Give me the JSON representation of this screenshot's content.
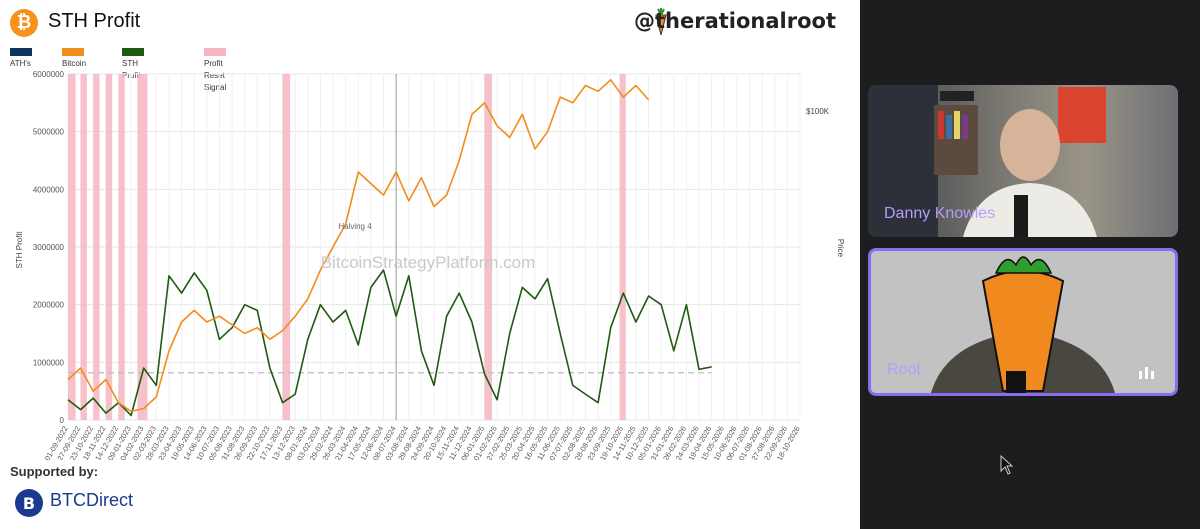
{
  "header": {
    "btc_symbol": "₿",
    "title": "STH Profit",
    "handle": "@therationalroot"
  },
  "legend": [
    {
      "label": "ATH's",
      "color": "#0f3460"
    },
    {
      "label": "Bitcoin",
      "color": "#f28c1c"
    },
    {
      "label": "STH Profit",
      "color": "#1e5a12"
    },
    {
      "label": "Profit Reset Signal",
      "color": "#f4b6c2"
    }
  ],
  "chart_data": {
    "type": "line",
    "ylabel": "STH Profit",
    "y2label": "Price",
    "y2_tick": "$100K",
    "watermark": "BitcoinStrategyPlatform.com",
    "annotation": "Halving 4",
    "ylim": [
      0,
      6000000
    ],
    "yticks": [
      "0",
      "1000000",
      "2000000",
      "3000000",
      "4000000",
      "5000000",
      "6000000"
    ],
    "x_ticks": [
      "01-09-2022",
      "27-09-2022",
      "23-10-2022",
      "18-11-2022",
      "14-12-2022",
      "09-01-2023",
      "04-02-2023",
      "02-03-2023",
      "28-03-2023",
      "23-04-2023",
      "19-05-2023",
      "14-06-2023",
      "10-07-2023",
      "05-08-2023",
      "31-08-2023",
      "26-09-2023",
      "22-10-2023",
      "17-11-2023",
      "13-12-2023",
      "08-01-2024",
      "03-02-2024",
      "29-02-2024",
      "26-03-2024",
      "21-04-2024",
      "17-05-2024",
      "12-06-2024",
      "08-07-2024",
      "03-08-2024",
      "29-08-2024",
      "24-09-2024",
      "20-10-2024",
      "15-11-2024",
      "11-12-2024",
      "06-01-2025",
      "01-02-2025",
      "27-02-2025",
      "25-03-2025",
      "20-04-2025",
      "16-05-2025",
      "11-06-2025",
      "07-07-2025",
      "02-08-2025",
      "28-08-2025",
      "23-09-2025",
      "19-10-2025",
      "14-11-2025",
      "10-12-2025",
      "05-01-2026",
      "31-01-2026",
      "26-02-2026",
      "24-03-2026",
      "19-04-2026",
      "15-05-2026",
      "10-06-2026",
      "06-07-2026",
      "01-08-2026",
      "27-08-2026",
      "22-09-2026",
      "18-10-2026"
    ],
    "series": [
      {
        "name": "STH Profit",
        "color": "#1e5a12",
        "points": [
          [
            0,
            350000
          ],
          [
            1,
            180000
          ],
          [
            2,
            380000
          ],
          [
            3,
            120000
          ],
          [
            4,
            300000
          ],
          [
            5,
            80000
          ],
          [
            6,
            900000
          ],
          [
            7,
            600000
          ],
          [
            8,
            2500000
          ],
          [
            9,
            2200000
          ],
          [
            10,
            2550000
          ],
          [
            11,
            2250000
          ],
          [
            12,
            1400000
          ],
          [
            13,
            1600000
          ],
          [
            14,
            2000000
          ],
          [
            15,
            1900000
          ],
          [
            16,
            900000
          ],
          [
            17,
            300000
          ],
          [
            18,
            450000
          ],
          [
            19,
            1400000
          ],
          [
            20,
            2000000
          ],
          [
            21,
            1700000
          ],
          [
            22,
            1900000
          ],
          [
            23,
            1300000
          ],
          [
            24,
            2300000
          ],
          [
            25,
            2600000
          ],
          [
            26,
            1800000
          ],
          [
            27,
            2500000
          ],
          [
            28,
            1200000
          ],
          [
            29,
            600000
          ],
          [
            30,
            1800000
          ],
          [
            31,
            2200000
          ],
          [
            32,
            1700000
          ],
          [
            33,
            800000
          ],
          [
            34,
            350000
          ],
          [
            35,
            1500000
          ],
          [
            36,
            2300000
          ],
          [
            37,
            2100000
          ],
          [
            38,
            2450000
          ],
          [
            39,
            1500000
          ],
          [
            40,
            600000
          ],
          [
            41,
            450000
          ],
          [
            42,
            300000
          ],
          [
            43,
            1600000
          ],
          [
            44,
            2200000
          ],
          [
            45,
            1700000
          ],
          [
            46,
            2150000
          ],
          [
            47,
            2000000
          ],
          [
            48,
            1200000
          ],
          [
            49,
            2000000
          ],
          [
            50,
            880000
          ],
          [
            51,
            920000
          ]
        ]
      },
      {
        "name": "Bitcoin",
        "color": "#f28c1c",
        "points": [
          [
            0,
            700000
          ],
          [
            1,
            900000
          ],
          [
            2,
            500000
          ],
          [
            3,
            700000
          ],
          [
            4,
            300000
          ],
          [
            5,
            150000
          ],
          [
            6,
            200000
          ],
          [
            7,
            400000
          ],
          [
            8,
            1200000
          ],
          [
            9,
            1700000
          ],
          [
            10,
            1900000
          ],
          [
            11,
            1700000
          ],
          [
            12,
            1800000
          ],
          [
            13,
            1650000
          ],
          [
            14,
            1500000
          ],
          [
            15,
            1600000
          ],
          [
            16,
            1400000
          ],
          [
            17,
            1550000
          ],
          [
            18,
            1800000
          ],
          [
            19,
            2100000
          ],
          [
            20,
            2600000
          ],
          [
            21,
            3000000
          ],
          [
            22,
            3400000
          ],
          [
            23,
            4300000
          ],
          [
            24,
            4100000
          ],
          [
            25,
            3900000
          ],
          [
            26,
            4300000
          ],
          [
            27,
            3800000
          ],
          [
            28,
            4200000
          ],
          [
            29,
            3700000
          ],
          [
            30,
            3900000
          ],
          [
            31,
            4500000
          ],
          [
            32,
            5300000
          ],
          [
            33,
            5500000
          ],
          [
            34,
            5100000
          ],
          [
            35,
            4900000
          ],
          [
            36,
            5300000
          ],
          [
            37,
            4700000
          ],
          [
            38,
            5000000
          ],
          [
            39,
            5600000
          ],
          [
            40,
            5500000
          ],
          [
            41,
            5800000
          ],
          [
            42,
            5700000
          ],
          [
            43,
            5900000
          ],
          [
            44,
            5600000
          ],
          [
            45,
            5800000
          ],
          [
            46,
            5550000
          ]
        ]
      }
    ],
    "reset_bands": [
      [
        0,
        0.6
      ],
      [
        1,
        1.5
      ],
      [
        2,
        2.5
      ],
      [
        3,
        3.5
      ],
      [
        4,
        4.5
      ],
      [
        5.5,
        6.3
      ],
      [
        17,
        17.6
      ],
      [
        33,
        33.6
      ],
      [
        43.7,
        44.2
      ]
    ],
    "reference_line": 820000,
    "halving_x": 26
  },
  "sponsor": {
    "label": "Supported by:",
    "brand": "BTCDirect"
  },
  "participants": [
    {
      "name": "Danny Knowles"
    },
    {
      "name": "Root"
    }
  ]
}
